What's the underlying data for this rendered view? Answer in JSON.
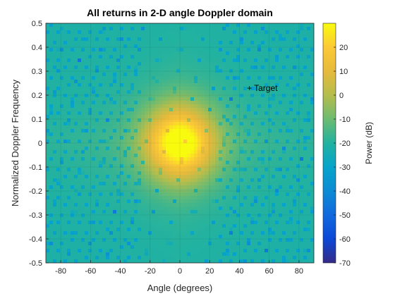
{
  "chart_data": {
    "type": "heatmap",
    "title": "All returns in 2-D angle Doppler domain",
    "xlabel": "Angle (degrees)",
    "ylabel": "Normalized Doppler Frequency",
    "xlim": [
      -90,
      90
    ],
    "ylim": [
      -0.5,
      0.5
    ],
    "xticks": [
      -80,
      -60,
      -40,
      -20,
      0,
      20,
      40,
      60,
      80
    ],
    "yticks": [
      -0.5,
      -0.4,
      -0.3,
      -0.2,
      -0.1,
      0,
      0.1,
      0.2,
      0.3,
      0.4,
      0.5
    ],
    "grid": true,
    "colormap": "parula",
    "colorbar": {
      "label": "Power (dB)",
      "range": [
        -70,
        30
      ],
      "ticks": [
        20,
        10,
        0,
        -10,
        -20,
        -30,
        -40,
        -50,
        -60,
        -70
      ]
    },
    "annotation": {
      "text": "+ Target",
      "angle": 45,
      "doppler": 0.23
    },
    "peak": {
      "angle": 0,
      "doppler": 0,
      "power_db": 25
    }
  }
}
